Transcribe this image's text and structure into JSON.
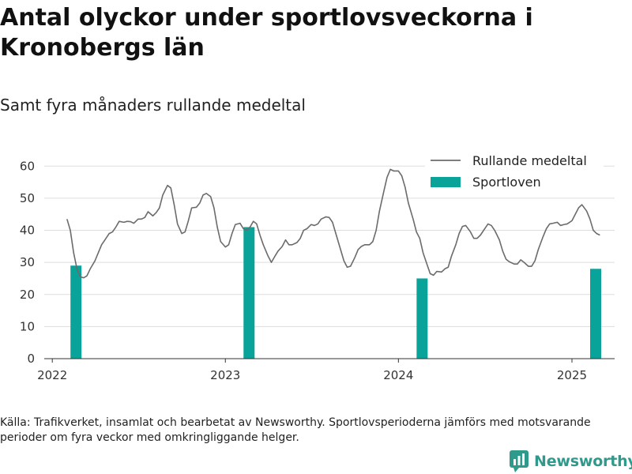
{
  "header": {
    "title": "Antal olyckor under sportlovsveckorna i Kronobergs län",
    "subtitle": "Samt fyra månaders rullande medeltal"
  },
  "footer": {
    "source": "Källa: Trafikverket, insamlat och bearbetat av Newsworthy. Sportlovsperioderna jämförs med motsvarande perioder om fyra veckor med omkringliggande helger.",
    "brand": "Newsworthy"
  },
  "colors": {
    "line": "#6b6b6b",
    "bar": "#0aa39a",
    "grid": "#dddddd",
    "brand": "#2f9a8c"
  },
  "chart_data": {
    "type": "bar+line",
    "ylim": [
      0,
      65
    ],
    "yticks": [
      0,
      10,
      20,
      30,
      40,
      50,
      60
    ],
    "xlim": [
      "2021-12-15",
      "2025-04-01"
    ],
    "xticks": [
      {
        "date": "2022-01-01",
        "label": "2022"
      },
      {
        "date": "2023-01-01",
        "label": "2023"
      },
      {
        "date": "2024-01-01",
        "label": "2024"
      },
      {
        "date": "2025-01-01",
        "label": "2025"
      }
    ],
    "legend": {
      "position": "top-right",
      "items": [
        "Rullande medeltal",
        "Sportloven"
      ]
    },
    "grid": true,
    "series": [
      {
        "name": "Rullande medeltal",
        "kind": "line",
        "points": [
          [
            "2022-02-01",
            43.5
          ],
          [
            "2022-02-08",
            40.0
          ],
          [
            "2022-02-15",
            33.0
          ],
          [
            "2022-02-22",
            28.0
          ],
          [
            "2022-03-01",
            25.5
          ],
          [
            "2022-03-08",
            25.2
          ],
          [
            "2022-03-15",
            25.8
          ],
          [
            "2022-03-22",
            28.0
          ],
          [
            "2022-04-01",
            30.5
          ],
          [
            "2022-04-08",
            33.0
          ],
          [
            "2022-04-15",
            35.5
          ],
          [
            "2022-04-22",
            37.0
          ],
          [
            "2022-05-01",
            39.0
          ],
          [
            "2022-05-08",
            39.5
          ],
          [
            "2022-05-15",
            41.0
          ],
          [
            "2022-05-22",
            42.8
          ],
          [
            "2022-06-01",
            42.5
          ],
          [
            "2022-06-08",
            42.8
          ],
          [
            "2022-06-15",
            42.7
          ],
          [
            "2022-06-22",
            42.2
          ],
          [
            "2022-07-01",
            43.5
          ],
          [
            "2022-07-08",
            43.5
          ],
          [
            "2022-07-15",
            44.0
          ],
          [
            "2022-07-22",
            45.8
          ],
          [
            "2022-08-01",
            44.5
          ],
          [
            "2022-08-08",
            45.5
          ],
          [
            "2022-08-15",
            47.0
          ],
          [
            "2022-08-22",
            51.0
          ],
          [
            "2022-09-01",
            54.0
          ],
          [
            "2022-09-08",
            53.2
          ],
          [
            "2022-09-15",
            48.0
          ],
          [
            "2022-09-22",
            42.0
          ],
          [
            "2022-10-01",
            39.0
          ],
          [
            "2022-10-08",
            39.5
          ],
          [
            "2022-10-15",
            43.0
          ],
          [
            "2022-10-22",
            47.0
          ],
          [
            "2022-11-01",
            47.2
          ],
          [
            "2022-11-08",
            48.5
          ],
          [
            "2022-11-15",
            51.0
          ],
          [
            "2022-11-22",
            51.5
          ],
          [
            "2022-12-01",
            50.5
          ],
          [
            "2022-12-08",
            47.0
          ],
          [
            "2022-12-15",
            41.0
          ],
          [
            "2022-12-22",
            36.5
          ],
          [
            "2023-01-01",
            34.8
          ],
          [
            "2023-01-08",
            35.5
          ],
          [
            "2023-01-15",
            39.0
          ],
          [
            "2023-01-22",
            41.8
          ],
          [
            "2023-02-01",
            42.2
          ],
          [
            "2023-02-08",
            40.5
          ],
          [
            "2023-02-15",
            40.0
          ],
          [
            "2023-02-22",
            41.0
          ],
          [
            "2023-03-01",
            42.8
          ],
          [
            "2023-03-08",
            42.0
          ],
          [
            "2023-03-15",
            38.5
          ],
          [
            "2023-03-22",
            35.5
          ],
          [
            "2023-04-01",
            32.0
          ],
          [
            "2023-04-08",
            30.0
          ],
          [
            "2023-04-15",
            31.8
          ],
          [
            "2023-04-22",
            33.5
          ],
          [
            "2023-05-01",
            35.0
          ],
          [
            "2023-05-08",
            37.0
          ],
          [
            "2023-05-15",
            35.5
          ],
          [
            "2023-05-22",
            35.5
          ],
          [
            "2023-06-01",
            36.2
          ],
          [
            "2023-06-08",
            37.5
          ],
          [
            "2023-06-15",
            40.0
          ],
          [
            "2023-06-22",
            40.5
          ],
          [
            "2023-07-01",
            41.8
          ],
          [
            "2023-07-08",
            41.5
          ],
          [
            "2023-07-15",
            42.0
          ],
          [
            "2023-07-22",
            43.5
          ],
          [
            "2023-08-01",
            44.2
          ],
          [
            "2023-08-08",
            44.0
          ],
          [
            "2023-08-15",
            42.5
          ],
          [
            "2023-08-22",
            39.0
          ],
          [
            "2023-09-01",
            34.0
          ],
          [
            "2023-09-08",
            30.5
          ],
          [
            "2023-09-15",
            28.5
          ],
          [
            "2023-09-22",
            28.8
          ],
          [
            "2023-10-01",
            31.5
          ],
          [
            "2023-10-08",
            34.0
          ],
          [
            "2023-10-15",
            35.0
          ],
          [
            "2023-10-22",
            35.5
          ],
          [
            "2023-11-01",
            35.5
          ],
          [
            "2023-11-08",
            36.5
          ],
          [
            "2023-11-15",
            40.0
          ],
          [
            "2023-11-22",
            46.0
          ],
          [
            "2023-12-01",
            52.0
          ],
          [
            "2023-12-08",
            56.5
          ],
          [
            "2023-12-15",
            59.0
          ],
          [
            "2023-12-22",
            58.5
          ],
          [
            "2024-01-01",
            58.5
          ],
          [
            "2024-01-08",
            57.0
          ],
          [
            "2024-01-15",
            53.5
          ],
          [
            "2024-01-22",
            48.5
          ],
          [
            "2024-02-01",
            43.5
          ],
          [
            "2024-02-08",
            39.5
          ],
          [
            "2024-02-15",
            37.5
          ],
          [
            "2024-02-22",
            33.0
          ],
          [
            "2024-03-01",
            29.5
          ],
          [
            "2024-03-08",
            26.5
          ],
          [
            "2024-03-15",
            26.0
          ],
          [
            "2024-03-22",
            27.2
          ],
          [
            "2024-04-01",
            27.0
          ],
          [
            "2024-04-08",
            28.0
          ],
          [
            "2024-04-15",
            28.5
          ],
          [
            "2024-04-22",
            32.0
          ],
          [
            "2024-05-01",
            35.5
          ],
          [
            "2024-05-08",
            39.0
          ],
          [
            "2024-05-15",
            41.2
          ],
          [
            "2024-05-22",
            41.5
          ],
          [
            "2024-06-01",
            39.5
          ],
          [
            "2024-06-08",
            37.5
          ],
          [
            "2024-06-15",
            37.5
          ],
          [
            "2024-06-22",
            38.5
          ],
          [
            "2024-07-01",
            40.5
          ],
          [
            "2024-07-08",
            42.0
          ],
          [
            "2024-07-15",
            41.5
          ],
          [
            "2024-07-22",
            40.0
          ],
          [
            "2024-08-01",
            37.0
          ],
          [
            "2024-08-08",
            33.5
          ],
          [
            "2024-08-15",
            31.0
          ],
          [
            "2024-08-22",
            30.2
          ],
          [
            "2024-09-01",
            29.5
          ],
          [
            "2024-09-08",
            29.5
          ],
          [
            "2024-09-15",
            30.8
          ],
          [
            "2024-09-22",
            30.0
          ],
          [
            "2024-10-01",
            28.8
          ],
          [
            "2024-10-08",
            28.8
          ],
          [
            "2024-10-15",
            30.5
          ],
          [
            "2024-10-22",
            34.0
          ],
          [
            "2024-11-01",
            38.0
          ],
          [
            "2024-11-08",
            40.5
          ],
          [
            "2024-11-15",
            42.0
          ],
          [
            "2024-11-22",
            42.2
          ],
          [
            "2024-12-01",
            42.5
          ],
          [
            "2024-12-08",
            41.5
          ],
          [
            "2024-12-15",
            41.8
          ],
          [
            "2024-12-22",
            42.0
          ],
          [
            "2025-01-01",
            43.0
          ],
          [
            "2025-01-08",
            45.0
          ],
          [
            "2025-01-15",
            47.0
          ],
          [
            "2025-01-22",
            48.0
          ],
          [
            "2025-02-01",
            46.0
          ],
          [
            "2025-02-08",
            43.5
          ],
          [
            "2025-02-15",
            40.0
          ],
          [
            "2025-02-22",
            39.0
          ],
          [
            "2025-03-01",
            38.5
          ]
        ]
      },
      {
        "name": "Sportloven",
        "kind": "bar",
        "points": [
          [
            "2022-02-20",
            29
          ],
          [
            "2023-02-20",
            41
          ],
          [
            "2024-02-20",
            25
          ],
          [
            "2025-02-20",
            28
          ]
        ]
      }
    ]
  }
}
